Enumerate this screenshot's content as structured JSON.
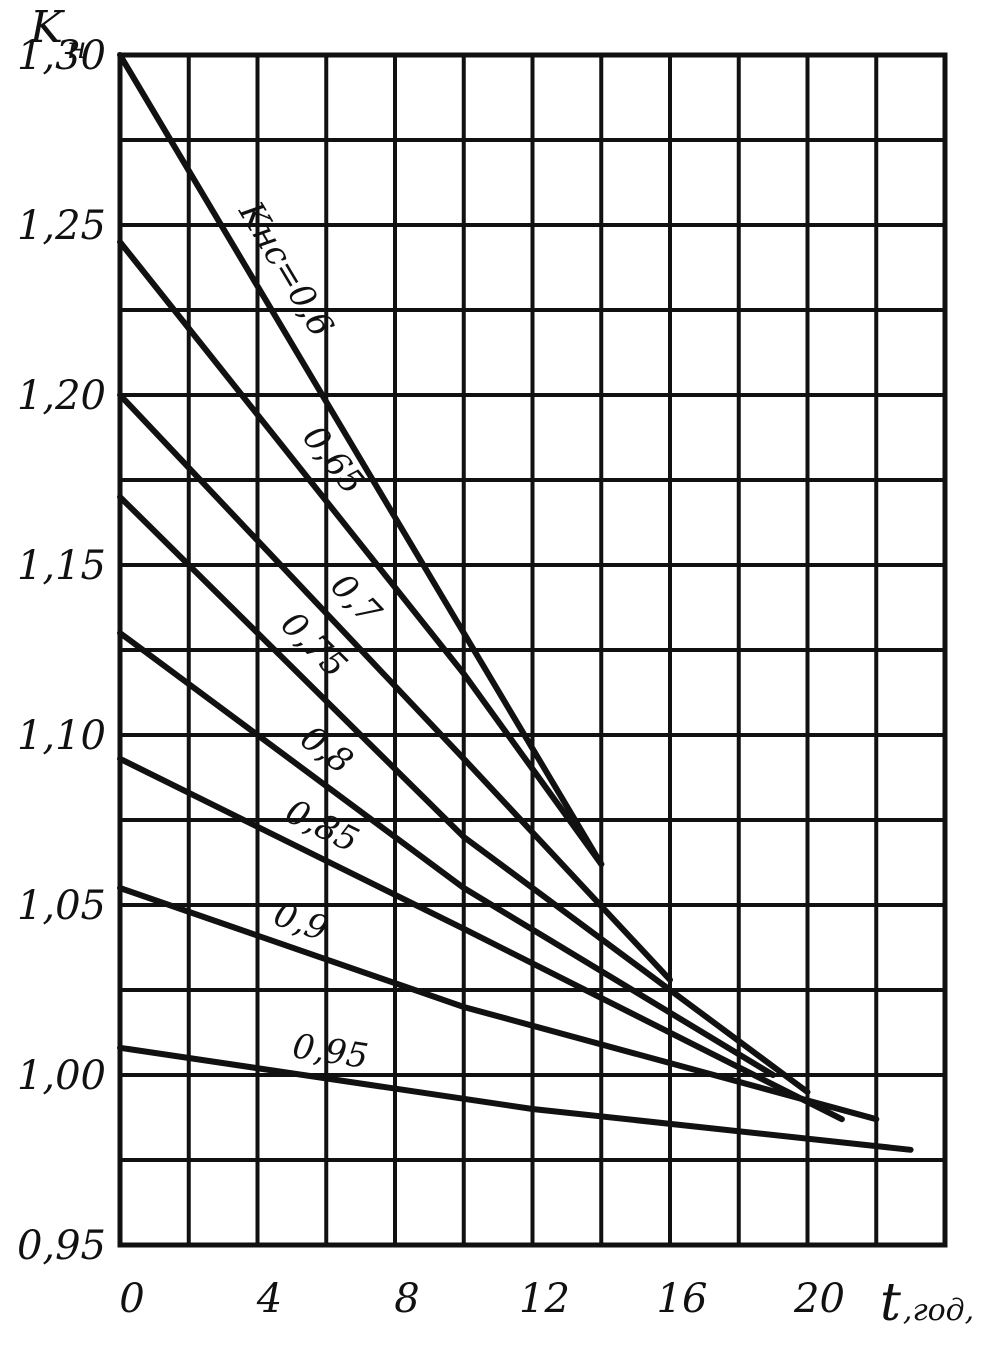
{
  "chart_data": {
    "type": "line",
    "title": "",
    "xlabel_main": "t",
    "xlabel_sub": ",год,",
    "ylabel_main": "K",
    "ylabel_sub": "н",
    "xlim": [
      0,
      24
    ],
    "ylim": [
      0.95,
      1.3
    ],
    "grid": true,
    "x_ticks": [
      0,
      4,
      8,
      12,
      16,
      20
    ],
    "x_tick_labels": [
      "0",
      "4",
      "8",
      "12",
      "16",
      "20"
    ],
    "y_ticks": [
      0.95,
      1.0,
      1.05,
      1.1,
      1.15,
      1.2,
      1.25,
      1.3
    ],
    "y_tick_labels": [
      "0,95",
      "1,00",
      "1,05",
      "1,10",
      "1,15",
      "1,20",
      "1,25",
      "1,30"
    ],
    "series": [
      {
        "name": "Kнс=0,6",
        "label": "Kнс=0,6",
        "x": [
          0,
          10,
          14
        ],
        "y": [
          1.3,
          1.13,
          1.062
        ]
      },
      {
        "name": "0,65",
        "label": "0,65",
        "x": [
          0,
          10,
          14
        ],
        "y": [
          1.245,
          1.118,
          1.062
        ]
      },
      {
        "name": "0,7",
        "label": "0,7",
        "x": [
          0,
          10,
          16
        ],
        "y": [
          1.2,
          1.093,
          1.028
        ]
      },
      {
        "name": "0,75",
        "label": "0,75",
        "x": [
          0,
          10,
          20
        ],
        "y": [
          1.17,
          1.07,
          0.995
        ]
      },
      {
        "name": "0,8",
        "label": "0,8",
        "x": [
          0,
          10,
          19
        ],
        "y": [
          1.13,
          1.055,
          1.0
        ]
      },
      {
        "name": "0,85",
        "label": "0,85",
        "x": [
          0,
          10,
          21
        ],
        "y": [
          1.093,
          1.043,
          0.987
        ]
      },
      {
        "name": "0,9",
        "label": "0,9",
        "x": [
          0,
          10,
          22
        ],
        "y": [
          1.055,
          1.02,
          0.987
        ]
      },
      {
        "name": "0,95",
        "label": "0,95",
        "x": [
          0,
          12,
          23
        ],
        "y": [
          1.008,
          0.99,
          0.978
        ]
      }
    ]
  }
}
